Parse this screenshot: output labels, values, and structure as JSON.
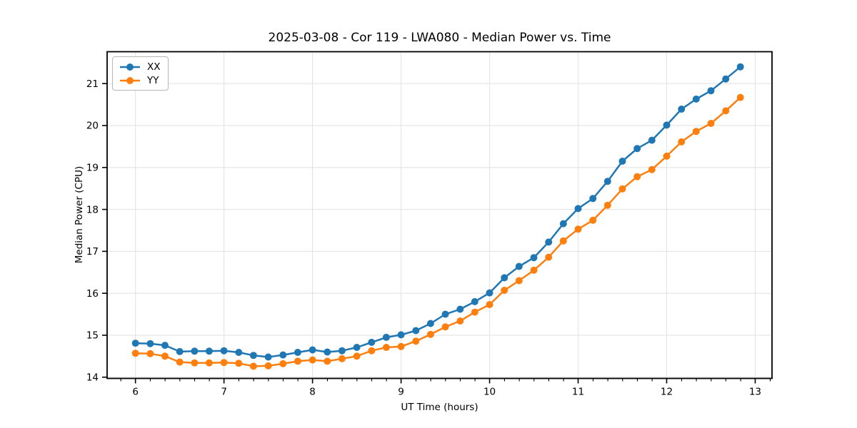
{
  "chart_data": {
    "type": "line",
    "title": "2025-03-08 - Cor 119 - LWA080 - Median Power vs. Time",
    "xlabel": "UT Time (hours)",
    "ylabel": "Median Power (CPU)",
    "xlim": [
      5.68,
      13.19
    ],
    "ylim": [
      13.97,
      21.76
    ],
    "x_ticks": [
      6,
      7,
      8,
      9,
      10,
      11,
      12,
      13
    ],
    "y_ticks": [
      14,
      15,
      16,
      17,
      18,
      19,
      20,
      21
    ],
    "x_minor_tick_step": 0.1667,
    "grid": true,
    "grid_color": "#e3e3e3",
    "legend_position": "upper left",
    "marker": "circle",
    "x": [
      6.0,
      6.167,
      6.333,
      6.5,
      6.667,
      6.833,
      7.0,
      7.167,
      7.333,
      7.5,
      7.667,
      7.833,
      8.0,
      8.167,
      8.333,
      8.5,
      8.667,
      8.833,
      9.0,
      9.167,
      9.333,
      9.5,
      9.667,
      9.833,
      10.0,
      10.167,
      10.333,
      10.5,
      10.667,
      10.833,
      11.0,
      11.167,
      11.333,
      11.5,
      11.667,
      11.833,
      12.0,
      12.167,
      12.333,
      12.5,
      12.667,
      12.833
    ],
    "series": [
      {
        "name": "XX",
        "color": "#1f77b4",
        "values": [
          14.81,
          14.8,
          14.76,
          14.61,
          14.62,
          14.62,
          14.63,
          14.59,
          14.52,
          14.48,
          14.53,
          14.59,
          14.65,
          14.6,
          14.63,
          14.71,
          14.83,
          14.95,
          15.01,
          15.11,
          15.28,
          15.5,
          15.62,
          15.8,
          16.01,
          16.37,
          16.64,
          16.85,
          17.22,
          17.66,
          18.02,
          18.26,
          18.67,
          19.15,
          19.45,
          19.65,
          20.01,
          20.39,
          20.63,
          20.83,
          21.11,
          21.4
        ]
      },
      {
        "name": "YY",
        "color": "#ff7f0e",
        "values": [
          14.57,
          14.56,
          14.5,
          14.36,
          14.34,
          14.34,
          14.35,
          14.33,
          14.26,
          14.27,
          14.32,
          14.38,
          14.41,
          14.38,
          14.44,
          14.5,
          14.63,
          14.71,
          14.73,
          14.86,
          15.02,
          15.2,
          15.34,
          15.55,
          15.73,
          16.07,
          16.3,
          16.55,
          16.86,
          17.25,
          17.53,
          17.74,
          18.1,
          18.49,
          18.78,
          18.95,
          19.27,
          19.61,
          19.86,
          20.05,
          20.35,
          20.67
        ]
      }
    ]
  }
}
